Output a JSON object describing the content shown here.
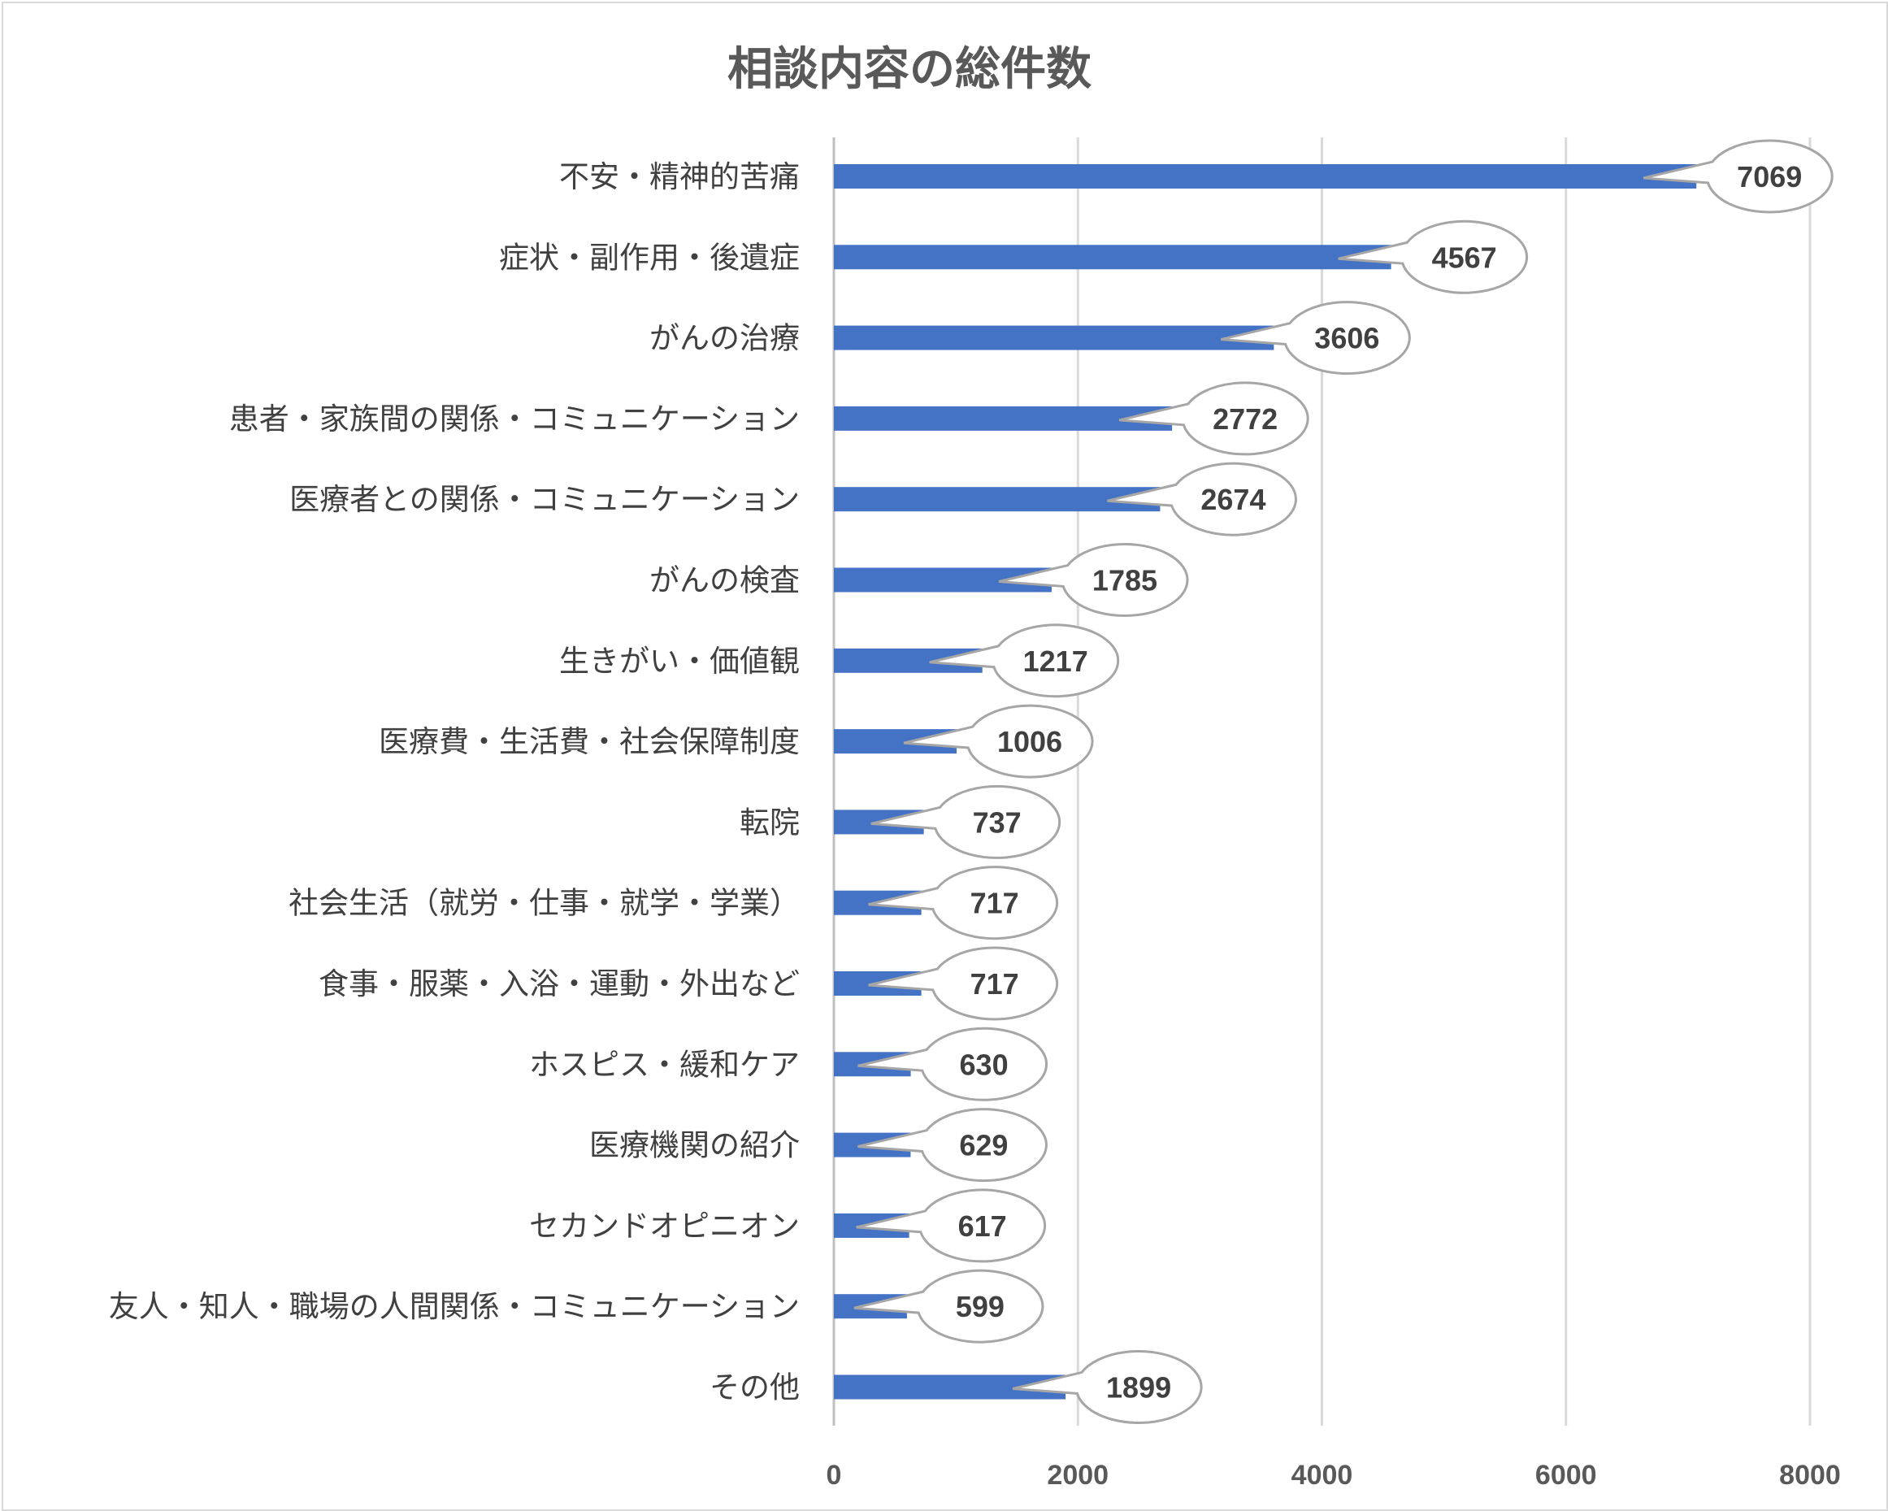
{
  "chart_data": {
    "type": "bar",
    "orientation": "horizontal",
    "title": "相談内容の総件数",
    "categories": [
      "不安・精神的苦痛",
      "症状・副作用・後遺症",
      "がんの治療",
      "患者・家族間の関係・コミュニケーション",
      "医療者との関係・コミュニケーション",
      "がんの検査",
      "生きがい・価値観",
      "医療費・生活費・社会保障制度",
      "転院",
      "社会生活（就労・仕事・就学・学業）",
      "食事・服薬・入浴・運動・外出など",
      "ホスピス・緩和ケア",
      "医療機関の紹介",
      "セカンドオピニオン",
      "友人・知人・職場の人間関係・コミュニケーション",
      "その他"
    ],
    "values": [
      7069,
      4567,
      3606,
      2772,
      2674,
      1785,
      1217,
      1006,
      737,
      717,
      717,
      630,
      629,
      617,
      599,
      1899
    ],
    "data_labels": [
      "7069",
      "4567",
      "3606",
      "2772",
      "2674",
      "1785",
      "1217",
      "1006",
      "737",
      "717",
      "717",
      "630",
      "629",
      "617",
      "599",
      "1899"
    ],
    "x_ticks": [
      "0",
      "2000",
      "4000",
      "6000",
      "8000"
    ],
    "xlim": [
      0,
      8000
    ],
    "grid": true,
    "data_label_style": "callout-bubble",
    "bar_color": "#4472c4",
    "legend": "none"
  }
}
